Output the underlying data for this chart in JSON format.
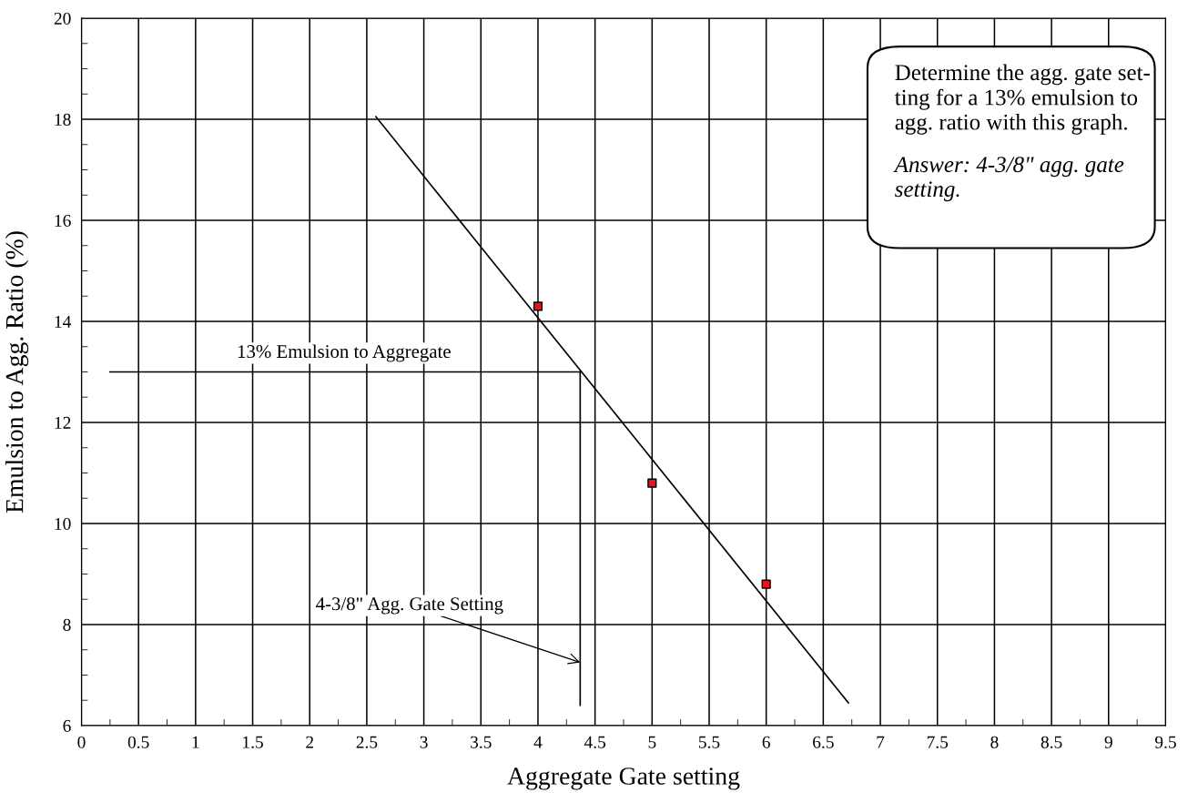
{
  "chart_data": {
    "type": "scatter",
    "xlabel": "Aggregate Gate setting",
    "ylabel": "Emulsion to Agg. Ratio (%)",
    "xlim": [
      0,
      9.5
    ],
    "xticks": [
      0,
      0.5,
      1,
      1.5,
      2,
      2.5,
      3,
      3.5,
      4,
      4.5,
      5,
      5.5,
      6,
      6.5,
      7,
      7.5,
      8,
      8.5,
      9,
      9.5
    ],
    "ylim": [
      6,
      20
    ],
    "yticks": [
      6,
      8,
      10,
      12,
      14,
      16,
      18,
      20
    ],
    "grid": true,
    "series": [
      {
        "marker": "square",
        "color": "#e8141c",
        "x": [
          4,
          5,
          6
        ],
        "values": [
          14.3,
          10.8,
          8.8
        ]
      },
      {
        "type": "line",
        "color": "#000000",
        "x": [
          2.58,
          6.72
        ],
        "values": [
          18.05,
          6.45
        ]
      },
      {
        "type": "line",
        "color": "#000000",
        "x": [
          0.25,
          4.37
        ],
        "values": [
          13,
          13
        ]
      },
      {
        "type": "line",
        "color": "#000000",
        "x": [
          4.37,
          4.37
        ],
        "values": [
          13,
          6.4
        ]
      }
    ],
    "annotations": [
      {
        "text": "13% Emulsion to Aggregate",
        "x": 2.3,
        "y": 13
      },
      {
        "text": "4-3/8\" Agg. Gate Setting",
        "x": 4.37,
        "y": 7.25
      },
      "Determine the agg. gate set-\nting for a 13% emulsion to\nagg. ratio with this graph.",
      "Answer: 4-3/8\" agg. gate\nsetting."
    ]
  }
}
